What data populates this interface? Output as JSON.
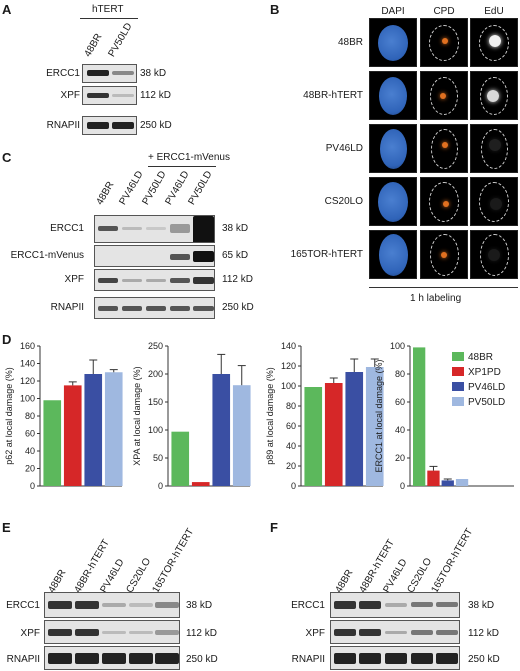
{
  "panels": {
    "A": {
      "letter": "A",
      "group_label": "hTERT",
      "lanes": [
        "48BR",
        "PV50LD"
      ],
      "rows": [
        {
          "label": "ERCC1",
          "kd": "38 kD"
        },
        {
          "label": "XPF",
          "kd": "112 kD"
        },
        {
          "label": "RNAPII",
          "kd": "250 kD"
        }
      ]
    },
    "B": {
      "letter": "B",
      "columns": [
        "DAPI",
        "CPD",
        "EdU"
      ],
      "rows": [
        "48BR",
        "48BR-hTERT",
        "PV46LD",
        "CS20LO",
        "165TOR-hTERT"
      ],
      "footer": "1 h labeling"
    },
    "C": {
      "letter": "C",
      "group_label": "+ ERCC1-mVenus",
      "lanes": [
        "48BR",
        "PV46LD",
        "PV50LD",
        "PV46LD",
        "PV50LD"
      ],
      "rows": [
        {
          "label": "ERCC1",
          "kd": "38 kD"
        },
        {
          "label": "ERCC1-mVenus",
          "kd": "65 kD"
        },
        {
          "label": "XPF",
          "kd": "112 kD"
        },
        {
          "label": "RNAPII",
          "kd": "250 kD"
        }
      ]
    },
    "D": {
      "letter": "D"
    },
    "E": {
      "letter": "E",
      "lanes": [
        "48BR",
        "48BR-hTERT",
        "PV46LD",
        "CS20LO",
        "165TOR-hTERT"
      ],
      "rows": [
        {
          "label": "ERCC1",
          "kd": "38 kD"
        },
        {
          "label": "XPF",
          "kd": "112 kD"
        },
        {
          "label": "RNAPII",
          "kd": "250 kD"
        }
      ]
    },
    "F": {
      "letter": "F",
      "lanes": [
        "48BR",
        "48BR-hTERT",
        "PV46LD",
        "CS20LO",
        "165TOR-hTERT"
      ],
      "rows": [
        {
          "label": "ERCC1",
          "kd": "38 kD"
        },
        {
          "label": "XPF",
          "kd": "112 kD"
        },
        {
          "label": "RNAPII",
          "kd": "250 kD"
        }
      ]
    }
  },
  "colors": {
    "48BR": "#5cb85c",
    "XP1PD": "#d62728",
    "PV46LD": "#3a4fa3",
    "PV50LD": "#9fb8e0",
    "dapi": "#2f63b8",
    "cpd": "#e07020"
  },
  "chart_data": [
    {
      "type": "bar",
      "categories": [
        "48BR",
        "XP1PD",
        "PV46LD",
        "PV50LD"
      ],
      "values": [
        98,
        115,
        128,
        130
      ],
      "errors": [
        0,
        4,
        16,
        3
      ],
      "ylabel": "p62 at local damage (%)",
      "ylim": [
        0,
        160
      ],
      "yticks": [
        0,
        20,
        40,
        60,
        80,
        100,
        120,
        140,
        160
      ]
    },
    {
      "type": "bar",
      "categories": [
        "48BR",
        "XP1PD",
        "PV46LD",
        "PV50LD"
      ],
      "values": [
        97,
        7,
        200,
        180
      ],
      "errors": [
        0,
        0,
        35,
        35
      ],
      "ylabel": "XPA at local damage (%)",
      "ylim": [
        0,
        250
      ],
      "yticks": [
        0,
        50,
        100,
        150,
        200,
        250
      ]
    },
    {
      "type": "bar",
      "categories": [
        "48BR",
        "XP1PD",
        "PV46LD",
        "PV50LD"
      ],
      "values": [
        99,
        103,
        114,
        119
      ],
      "errors": [
        0,
        5,
        13,
        8
      ],
      "ylabel": "p89 at local damage (%)",
      "ylim": [
        0,
        140
      ],
      "yticks": [
        0,
        20,
        40,
        60,
        80,
        100,
        120,
        140
      ]
    },
    {
      "type": "bar",
      "categories": [
        "48BR",
        "XP1PD",
        "PV46LD",
        "PV50LD"
      ],
      "values": [
        99,
        11,
        4,
        5
      ],
      "errors": [
        0,
        3,
        1,
        0
      ],
      "ylabel": "ERCC1 at local damage (%)",
      "ylim": [
        0,
        100
      ],
      "yticks": [
        0,
        20,
        40,
        60,
        80,
        100
      ],
      "legend": [
        "48BR",
        "XP1PD",
        "PV46LD",
        "PV50LD"
      ],
      "legend_position": "top-right"
    }
  ]
}
